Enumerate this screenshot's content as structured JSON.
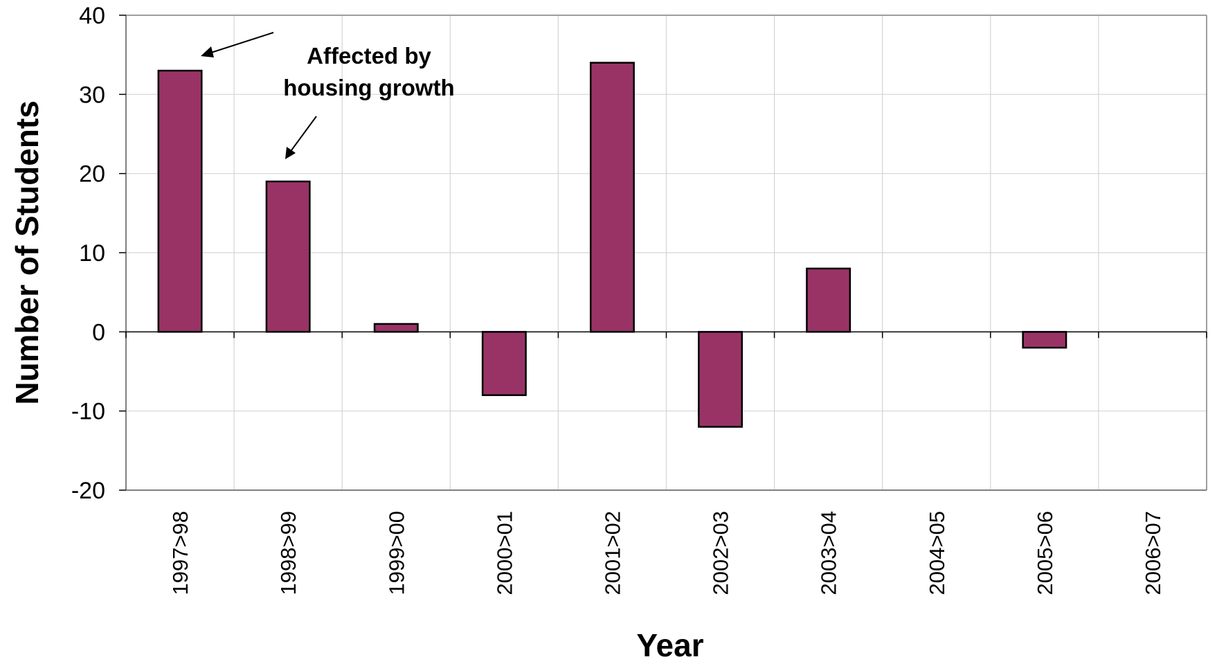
{
  "chart_data": {
    "type": "bar",
    "title": "",
    "xlabel": "Year",
    "ylabel": "Number of Students",
    "categories": [
      "1997>98",
      "1998>99",
      "1999>00",
      "2000>01",
      "2001>02",
      "2002>03",
      "2003>04",
      "2004>05",
      "2005>06",
      "2006>07"
    ],
    "series": [
      {
        "values": [
          33,
          19,
          1,
          -8,
          34,
          -12,
          8,
          0,
          -2,
          0
        ]
      }
    ],
    "ylim": [
      -20,
      40
    ],
    "yticks": [
      40,
      30,
      20,
      10,
      0,
      -10,
      -20
    ],
    "ytick_labels": [
      "40",
      "30",
      "20",
      "10",
      "0",
      "-10",
      "-20"
    ],
    "grid": true,
    "bar_color": "#993366",
    "annotation": {
      "lines": [
        "Affected by",
        "housing growth"
      ],
      "points_to": [
        "1997>98",
        "1998>99"
      ]
    }
  }
}
